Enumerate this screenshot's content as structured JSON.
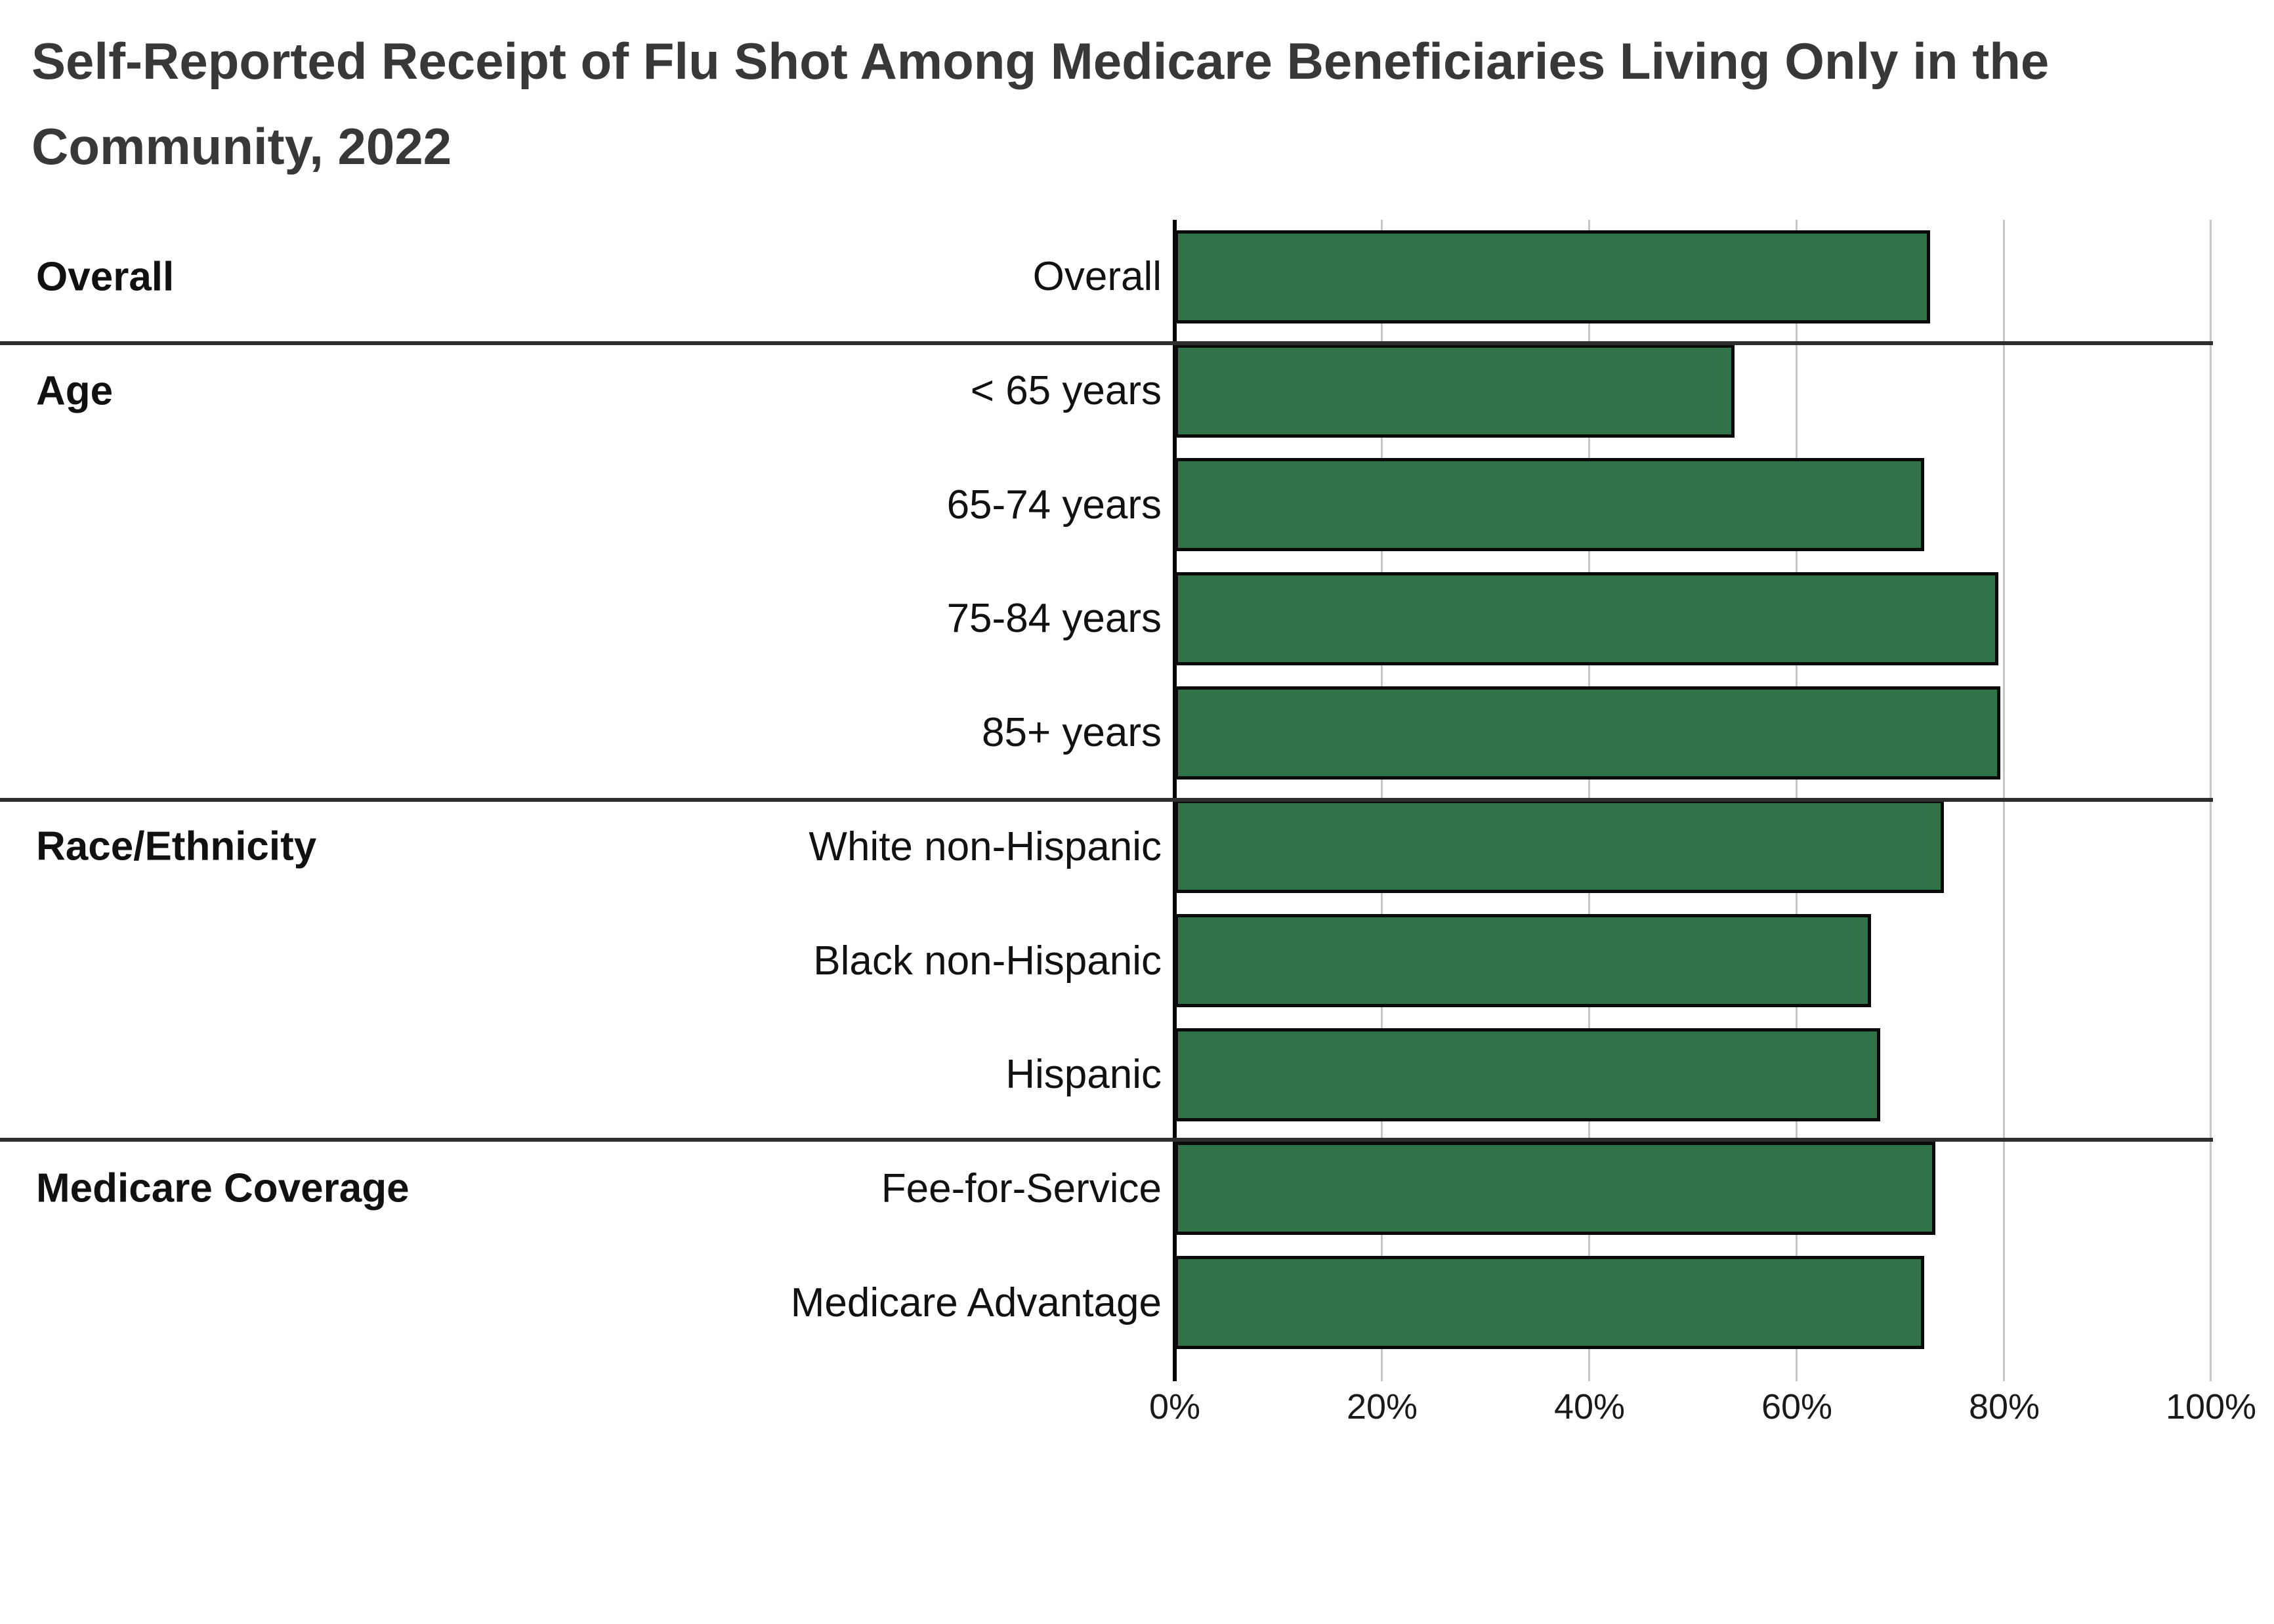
{
  "title": {
    "line1": "Self-Reported Receipt of Flu Shot Among Medicare Beneficiaries Living Only in the",
    "line2": "Community, 2022"
  },
  "chart_data": {
    "type": "bar",
    "orientation": "horizontal",
    "title": "Self-Reported Receipt of Flu Shot Among Medicare Beneficiaries Living Only in the Community, 2022",
    "unit": "%",
    "grid": true,
    "bar_color": "#317348",
    "bar_border_color": "#0a0a0a",
    "x_axis": {
      "min": 0,
      "max": 100,
      "ticks": [
        "0%",
        "20%",
        "40%",
        "60%",
        "80%",
        "100%"
      ]
    },
    "groups": [
      {
        "label": "Overall",
        "rows": [
          {
            "label": "Overall",
            "value": 72.9
          }
        ]
      },
      {
        "label": "Age",
        "rows": [
          {
            "label": "< 65 years",
            "value": 54.0
          },
          {
            "label": "65-74 years",
            "value": 72.3
          },
          {
            "label": "75-84 years",
            "value": 79.5
          },
          {
            "label": "85+ years",
            "value": 79.7
          }
        ]
      },
      {
        "label": "Race/Ethnicity",
        "rows": [
          {
            "label": "White non-Hispanic",
            "value": 74.2
          },
          {
            "label": "Black non-Hispanic",
            "value": 67.2
          },
          {
            "label": "Hispanic",
            "value": 68.1
          }
        ]
      },
      {
        "label": "Medicare Coverage",
        "rows": [
          {
            "label": "Fee-for-Service",
            "value": 73.4
          },
          {
            "label": "Medicare Advantage",
            "value": 72.3
          }
        ]
      }
    ]
  }
}
